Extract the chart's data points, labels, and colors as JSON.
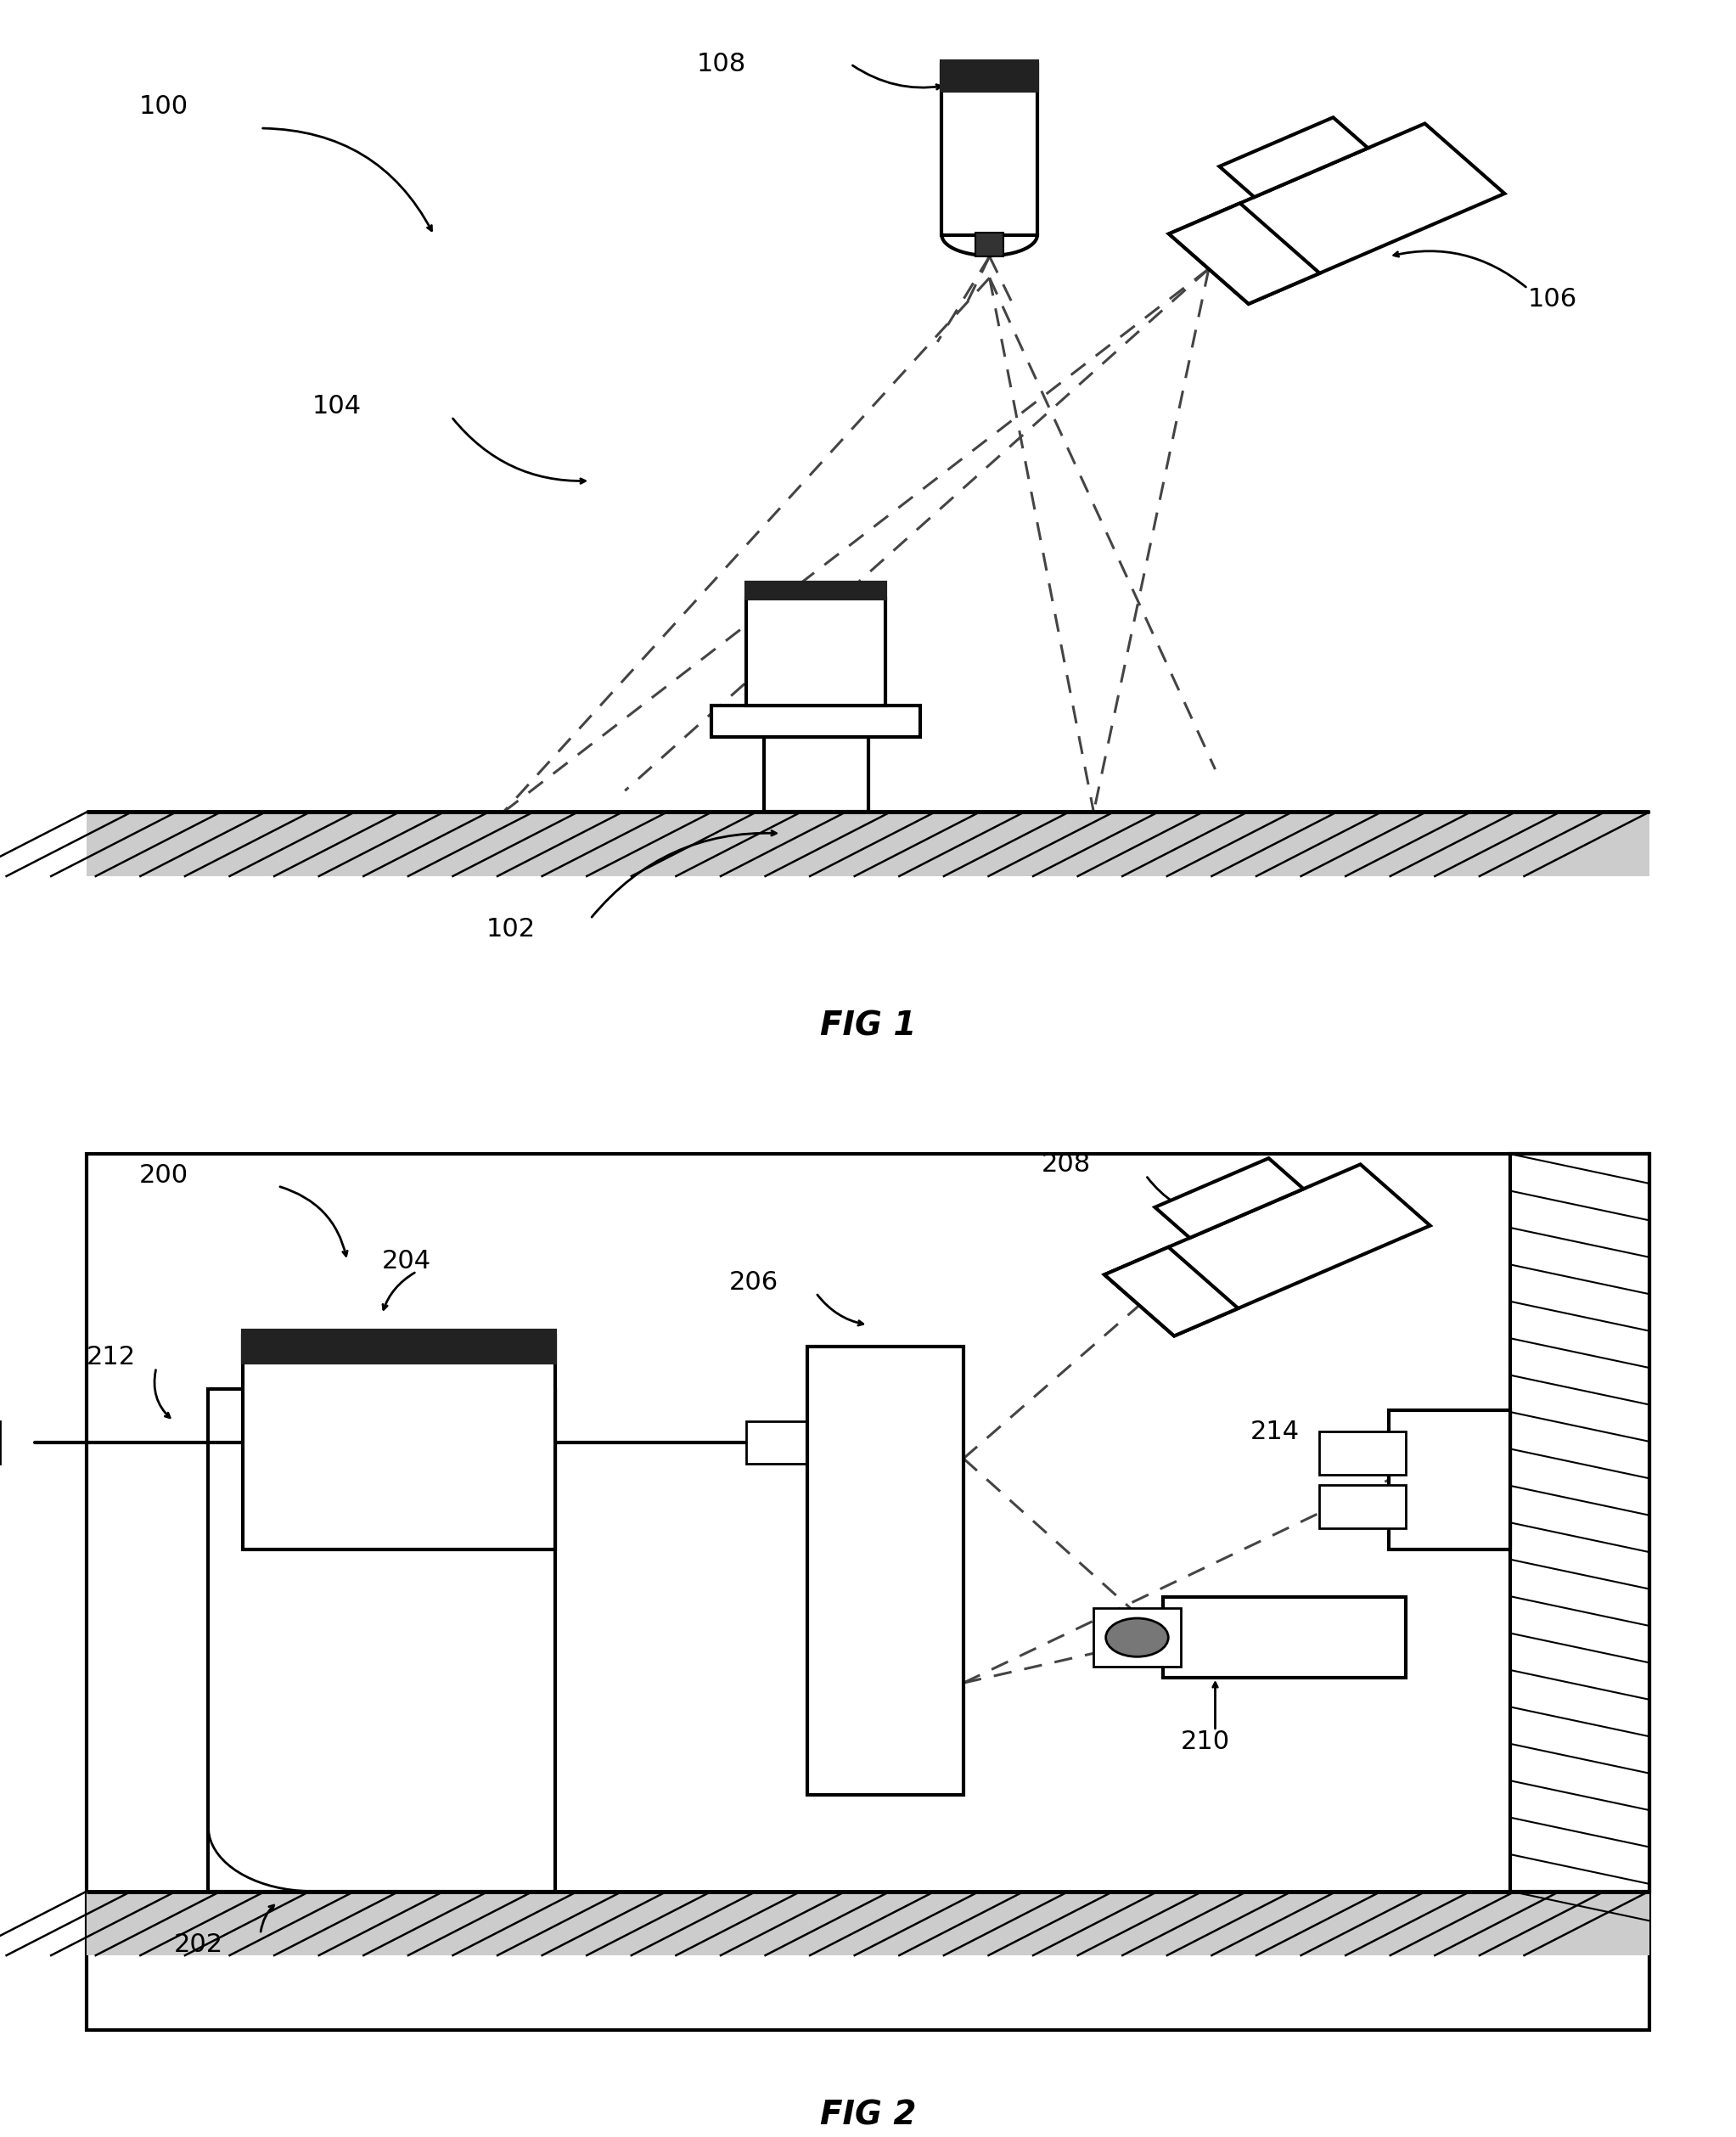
{
  "fig1_label": "FIG 1",
  "fig2_label": "FIG 2",
  "bg_color": "#ffffff",
  "lc": "#000000",
  "dc": "#444444",
  "lw_main": 3.0,
  "lw_dash": 2.2,
  "fontsize_label": 22,
  "fontsize_fig": 28
}
